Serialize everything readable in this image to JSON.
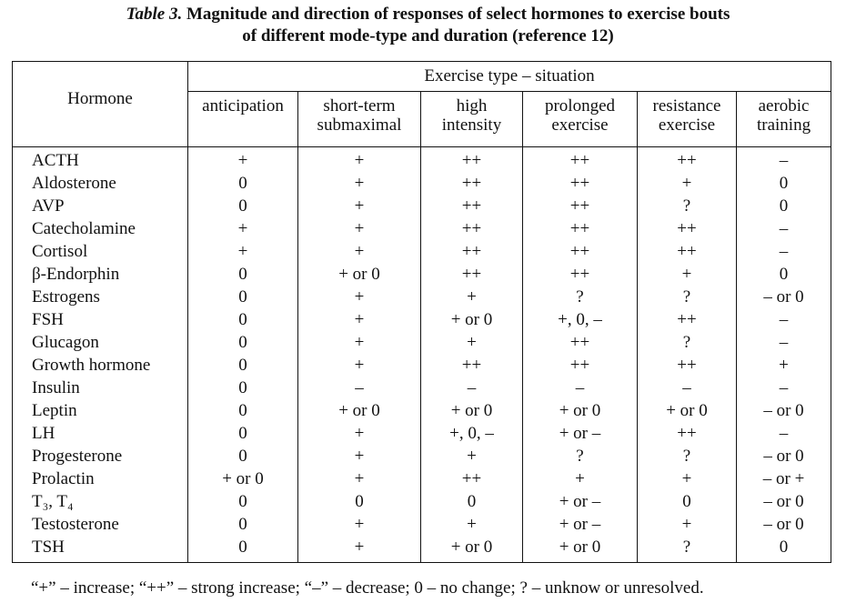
{
  "caption": {
    "label": "Table 3.",
    "line1": "Magnitude and direction of responses of select hormones to exercise bouts",
    "line2": "of different mode-type and duration (reference 12)"
  },
  "table": {
    "hormone_header": "Hormone",
    "group_header": "Exercise type – situation",
    "columns": [
      [
        "anticipation",
        ""
      ],
      [
        "short-term",
        "submaximal"
      ],
      [
        "high",
        "intensity"
      ],
      [
        "prolonged",
        "exercise"
      ],
      [
        "resistance",
        "exercise"
      ],
      [
        "aerobic",
        "training"
      ]
    ],
    "rows": [
      [
        "ACTH",
        "+",
        "+",
        "++",
        "++",
        "++",
        "–"
      ],
      [
        "Aldosterone",
        "0",
        "+",
        "++",
        "++",
        "+",
        "0"
      ],
      [
        "AVP",
        "0",
        "+",
        "++",
        "++",
        "?",
        "0"
      ],
      [
        "Catecholamine",
        "+",
        "+",
        "++",
        "++",
        "++",
        "–"
      ],
      [
        "Cortisol",
        "+",
        "+",
        "++",
        "++",
        "++",
        "–"
      ],
      [
        "β-Endorphin",
        "0",
        "+ or 0",
        "++",
        "++",
        "+",
        "0"
      ],
      [
        "Estrogens",
        "0",
        "+",
        "+",
        "?",
        "?",
        "– or 0"
      ],
      [
        "FSH",
        "0",
        "+",
        "+ or 0",
        "+, 0, –",
        "++",
        "–"
      ],
      [
        "Glucagon",
        "0",
        "+",
        "+",
        "++",
        "?",
        "–"
      ],
      [
        "Growth hormone",
        "0",
        "+",
        "++",
        "++",
        "++",
        "+"
      ],
      [
        "Insulin",
        "0",
        "–",
        "–",
        "–",
        "–",
        "–"
      ],
      [
        "Leptin",
        "0",
        "+ or 0",
        "+ or 0",
        "+ or 0",
        "+ or 0",
        "– or 0"
      ],
      [
        "LH",
        "0",
        "+",
        "+, 0, –",
        "+ or –",
        "++",
        "–"
      ],
      [
        "Progesterone",
        "0",
        "+",
        "+",
        "?",
        "?",
        "– or 0"
      ],
      [
        "Prolactin",
        "+ or 0",
        "+",
        "++",
        "+",
        "+",
        "– or +"
      ],
      [
        "T₃, T₄",
        "0",
        "0",
        "0",
        "+ or –",
        "0",
        "– or 0"
      ],
      [
        "Testosterone",
        "0",
        "+",
        "+",
        "+ or –",
        "+",
        "– or 0"
      ],
      [
        "TSH",
        "0",
        "+",
        "+ or 0",
        "+ or 0",
        "?",
        "0"
      ]
    ]
  },
  "footnote": "“+” – increase; “++” – strong increase; “–” – decrease; 0 – no change; ? – unknow or unresolved."
}
